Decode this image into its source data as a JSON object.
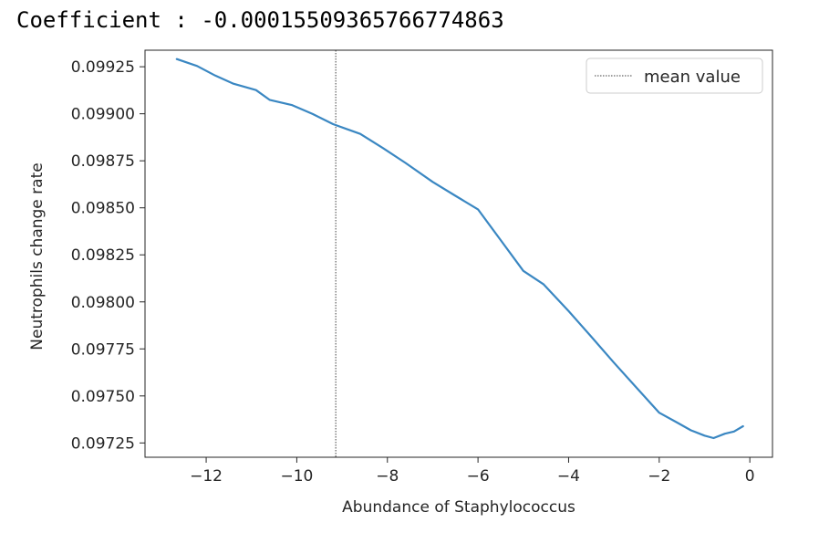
{
  "header": {
    "coefficient_label": "Coefficient",
    "separator": " : ",
    "coefficient_value": "-0.00015509365766774863"
  },
  "chart_data": {
    "type": "line",
    "title": "",
    "xlabel": "Abundance of Staphylococcus",
    "ylabel": "Neutrophils change rate",
    "xlim": [
      -13.35,
      0.5
    ],
    "ylim": [
      0.097174,
      0.099338
    ],
    "xticks": [
      -12,
      -10,
      -8,
      -6,
      -4,
      -2,
      0
    ],
    "xtick_labels": [
      "−12",
      "−10",
      "−8",
      "−6",
      "−4",
      "−2",
      "0"
    ],
    "yticks": [
      0.09725,
      0.0975,
      0.09775,
      0.098,
      0.09825,
      0.0985,
      0.09875,
      0.099,
      0.09925
    ],
    "ytick_labels": [
      "0.09725",
      "0.09750",
      "0.09775",
      "0.09800",
      "0.09825",
      "0.09850",
      "0.09875",
      "0.09900",
      "0.09925"
    ],
    "grid": false,
    "legend": {
      "placement": "top-right",
      "entries": [
        "mean value"
      ]
    },
    "series": [
      {
        "color": "#3a87c2",
        "x": [
          -12.65,
          -12.2,
          -11.8,
          -11.4,
          -10.9,
          -10.6,
          -10.1,
          -9.65,
          -9.2,
          -8.6,
          -8.1,
          -7.6,
          -7.0,
          -6.5,
          -6.0,
          -5.5,
          -5.0,
          -4.55,
          -4.0,
          -3.5,
          -3.0,
          -2.5,
          -2.0,
          -1.6,
          -1.3,
          -1.0,
          -0.8,
          -0.55,
          -0.35,
          -0.15
        ],
        "y": [
          0.099291,
          0.099254,
          0.099203,
          0.09916,
          0.099126,
          0.099074,
          0.099046,
          0.098999,
          0.098945,
          0.098893,
          0.098818,
          0.098739,
          0.098638,
          0.098564,
          0.098492,
          0.098329,
          0.098165,
          0.098093,
          0.097951,
          0.097815,
          0.097677,
          0.097543,
          0.097411,
          0.097358,
          0.097317,
          0.097289,
          0.097276,
          0.097299,
          0.097311,
          0.097339
        ]
      }
    ],
    "reference_lines": [
      {
        "orientation": "vertical",
        "x": -9.14,
        "style": "dotted",
        "color": "#404040",
        "label": "mean value"
      }
    ]
  }
}
